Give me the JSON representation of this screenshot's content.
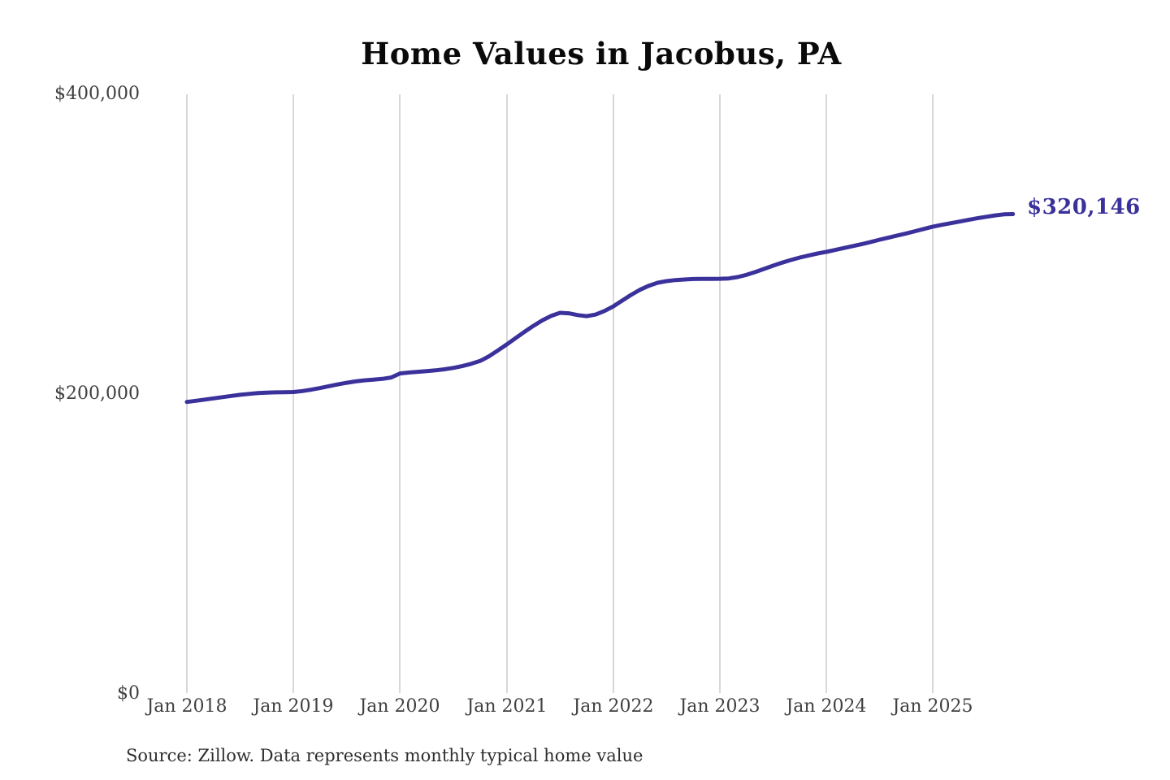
{
  "page": {
    "background_color": "#ffffff"
  },
  "chart_data": {
    "type": "line",
    "title": "Home Values in Jacobus, PA",
    "xlabel": "",
    "ylabel": "",
    "ylim": [
      0,
      400000
    ],
    "grid": "vertical-only",
    "grid_color": "#cccccc",
    "line_color": "#3a319b",
    "legend": "none",
    "x_start": "Jan 2018",
    "x_interval": "month",
    "x_tick_labels": [
      "Jan 2018",
      "Jan 2019",
      "Jan 2020",
      "Jan 2021",
      "Jan 2022",
      "Jan 2023",
      "Jan 2024",
      "Jan 2025"
    ],
    "y_tick_labels": [
      "$0",
      "$200,000",
      "$400,000"
    ],
    "end_label": "$320,146",
    "final_value": 320146,
    "source_note": "Source: Zillow. Data represents monthly typical home value",
    "series": [
      {
        "name": "Typical home value",
        "values": [
          195000,
          195800,
          196600,
          197400,
          198200,
          199000,
          199800,
          200400,
          200900,
          201200,
          201400,
          201500,
          201600,
          202300,
          203200,
          204300,
          205500,
          206700,
          207800,
          208700,
          209400,
          209900,
          210400,
          211300,
          214000,
          214600,
          215100,
          215600,
          216100,
          216800,
          217700,
          218900,
          220400,
          222300,
          225400,
          229300,
          233300,
          237500,
          241700,
          245700,
          249300,
          252300,
          254400,
          254100,
          252900,
          252200,
          253200,
          255600,
          258700,
          262500,
          266300,
          269700,
          272400,
          274400,
          275500,
          276200,
          276600,
          276900,
          277000,
          277000,
          277100,
          277300,
          278200,
          279700,
          281600,
          283700,
          285800,
          287800,
          289600,
          291200,
          292600,
          293900,
          295000,
          296300,
          297600,
          298900,
          300200,
          301600,
          303100,
          304500,
          305900,
          307300,
          308800,
          310300,
          311800,
          313000,
          314100,
          315200,
          316300,
          317400,
          318400,
          319300,
          320000,
          320146
        ]
      }
    ]
  }
}
